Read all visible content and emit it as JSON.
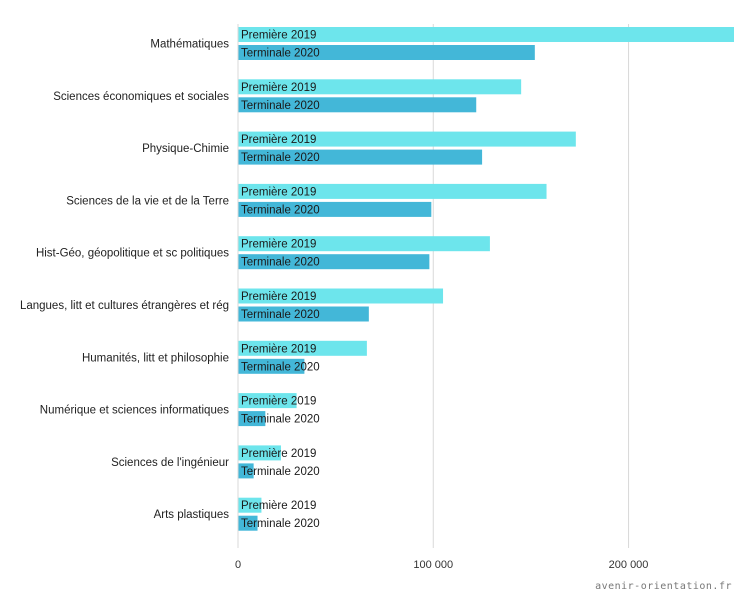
{
  "chart_data": {
    "type": "bar",
    "orientation": "horizontal",
    "categories": [
      "Mathématiques",
      "Sciences économiques et sociales",
      "Physique-Chimie",
      "Sciences de la vie et de la Terre",
      "Hist-Géo, géopolitique et sc politiques",
      "Langues, litt et cultures étrangères et rég",
      "Humanités, litt et philosophie",
      "Numérique et sciences informatiques",
      "Sciences de l'ingénieur",
      "Arts plastiques"
    ],
    "series": [
      {
        "name": "Première 2019",
        "color": "#6de5ec",
        "values": [
          254000,
          145000,
          173000,
          158000,
          129000,
          105000,
          66000,
          30000,
          22000,
          12000
        ]
      },
      {
        "name": "Terminale 2020",
        "color": "#43b7d8",
        "values": [
          152000,
          122000,
          125000,
          99000,
          98000,
          67000,
          34000,
          14000,
          8000,
          10000
        ]
      }
    ],
    "xlim": [
      0,
      254000
    ],
    "xticks": [
      0,
      100000,
      200000
    ],
    "xtick_labels": [
      "0",
      "100 000",
      "200 000"
    ],
    "grid": "vertical"
  },
  "watermark": "avenir-orientation.fr"
}
